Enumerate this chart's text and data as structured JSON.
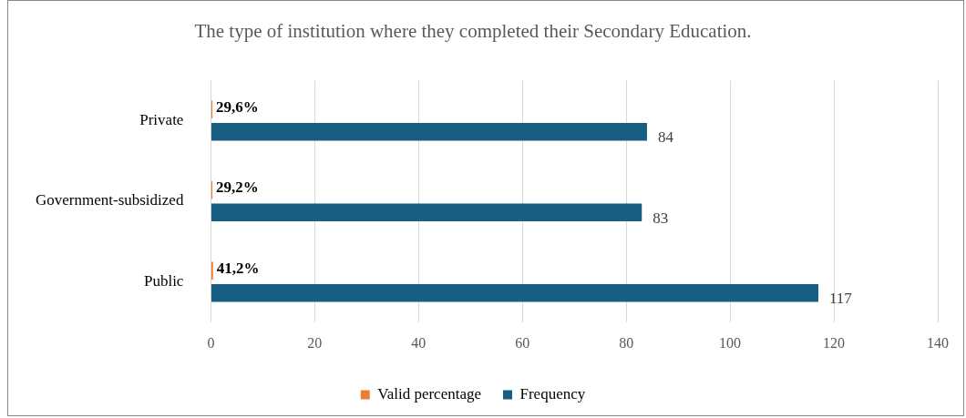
{
  "chart_data": {
    "type": "bar",
    "orientation": "horizontal",
    "title": "The type of institution where they completed their Secondary Education.",
    "categories": [
      "Private",
      "Government-subsidized",
      "Public"
    ],
    "series": [
      {
        "name": "Valid percentage",
        "color": "#ed7d31",
        "values": [
          0.296,
          0.292,
          0.412
        ],
        "value_labels": [
          "29,6%",
          "29,2%",
          "41,2%"
        ]
      },
      {
        "name": "Frequency",
        "color": "#175e82",
        "values": [
          84,
          83,
          117
        ],
        "value_labels": [
          "84",
          "83",
          "117"
        ]
      }
    ],
    "xlim": [
      0,
      140
    ],
    "xticks": [
      0,
      20,
      40,
      60,
      80,
      100,
      120,
      140
    ],
    "grid": "x",
    "legend": "bottom"
  }
}
